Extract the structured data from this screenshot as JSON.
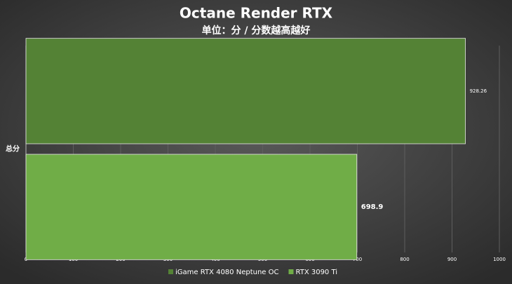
{
  "chart_data": {
    "type": "bar",
    "orientation": "horizontal",
    "title": "Octane Render RTX",
    "subtitle": "单位：分 / 分数越高越好",
    "categories": [
      "总分"
    ],
    "series": [
      {
        "name": "iGame RTX 4080 Neptune OC",
        "color": "#548235",
        "values": [
          928.26
        ]
      },
      {
        "name": "RTX 3090 Ti",
        "color": "#70ad47",
        "values": [
          698.9
        ]
      }
    ],
    "xlim": [
      0,
      1000
    ],
    "xticks": [
      0,
      100,
      200,
      300,
      400,
      500,
      600,
      700,
      800,
      900,
      1000
    ],
    "grid": true,
    "legend": "bottom"
  }
}
